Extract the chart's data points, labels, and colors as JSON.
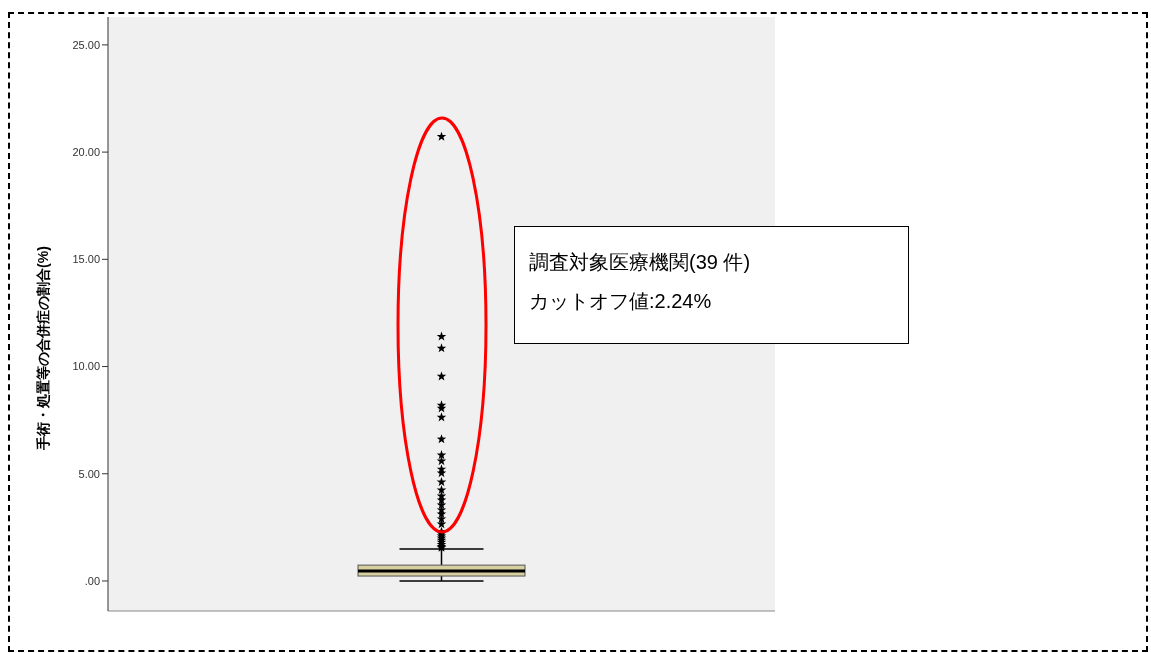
{
  "chart_data": {
    "type": "box",
    "ylabel": "手術・処置等の合併症の割合(%)",
    "categories": [
      null
    ],
    "boxes": [
      {
        "low": 0,
        "q1": 0.23,
        "median": 0.47,
        "q3": 0.74,
        "high": 1.49,
        "outliers": [
          1.55,
          1.6,
          1.7,
          1.8,
          1.9,
          2.0,
          2.1,
          2.2,
          2.3,
          2.65,
          2.89,
          3.12,
          3.31,
          3.54,
          3.77,
          3.96,
          4.24,
          4.61,
          5.03,
          5.21,
          5.59,
          5.87,
          6.61,
          7.63,
          8.05,
          8.19,
          9.54,
          10.85,
          11.4,
          20.72
        ]
      }
    ],
    "ylim": [
      -1.4,
      26.3
    ],
    "yticks": [
      {
        "value": 0,
        "label": ".00"
      },
      {
        "value": 5,
        "label": "5.00"
      },
      {
        "value": 10,
        "label": "10.00"
      },
      {
        "value": 15,
        "label": "15.00"
      },
      {
        "value": 20,
        "label": "20.00"
      },
      {
        "value": 25,
        "label": "25.00"
      }
    ],
    "tick_labels": "y",
    "marker": "star",
    "color": "#d6cfa0",
    "annotations": [
      "調査対象医療機関(39 件)",
      "カットオフ値:2.24%"
    ]
  }
}
